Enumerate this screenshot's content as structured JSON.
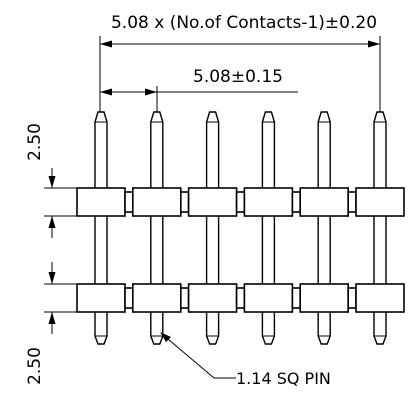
{
  "dimensions": {
    "overall_length": "5.08 x (No.of Contacts-1)±0.20",
    "pitch": "5.08±0.15",
    "pin_top_length": "2.50",
    "pin_bottom_length": "2.50",
    "pin_callout": "1.14 SQ PIN"
  },
  "pin_count": 6,
  "insulator_rows": 2
}
